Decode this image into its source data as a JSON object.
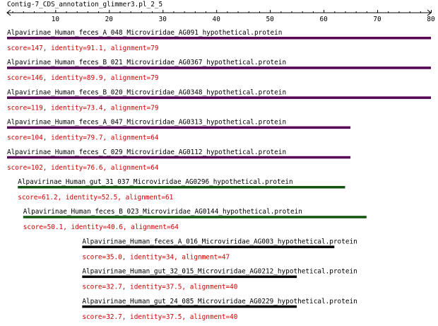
{
  "title": "Contig-7_CDS_annotation_glimmer3.pl_2_5",
  "axis": {
    "min": 1,
    "max": 80,
    "major_ticks": [
      10,
      20,
      30,
      40,
      50,
      60,
      70,
      80
    ]
  },
  "colors": {
    "score_text": "#cc0000",
    "axis": "#000000",
    "label": "#000000"
  },
  "hits": [
    {
      "label": "Alpavirinae_Human_feces_A_048_Microviridae_AG091_hypothetical.protein",
      "stats": "score=147, identity=91.1, alignment=79",
      "start": 1,
      "end": 80,
      "color": "#550055"
    },
    {
      "label": "Alpavirinae_Human_feces_B_021_Microviridae_AG0367_hypothetical.protein",
      "stats": "score=146, identity=89.9, alignment=79",
      "start": 1,
      "end": 80,
      "color": "#550055"
    },
    {
      "label": "Alpavirinae_Human_feces_B_020_Microviridae_AG0348_hypothetical.protein",
      "stats": "score=119, identity=73.4, alignment=79",
      "start": 1,
      "end": 80,
      "color": "#550055"
    },
    {
      "label": "Alpavirinae_Human_feces_A_047_Microviridae_AG0313_hypothetical.protein",
      "stats": "score=104, identity=79.7, alignment=64",
      "start": 1,
      "end": 65,
      "color": "#550055"
    },
    {
      "label": "Alpavirinae_Human_feces_C_029_Microviridae_AG0112_hypothetical.protein",
      "stats": "score=102, identity=76.6, alignment=64",
      "start": 1,
      "end": 65,
      "color": "#550055"
    },
    {
      "label": "Alpavirinae_Human_gut_31_037_Microviridae_AG0296_hypothetical.protein",
      "stats": "score=61.2, identity=52.5, alignment=61",
      "start": 3,
      "end": 64,
      "color": "#115511"
    },
    {
      "label": "Alpavirinae_Human_feces_B_023_Microviridae_AG0144_hypothetical.protein",
      "stats": "score=50.1, identity=40.6, alignment=64",
      "start": 4,
      "end": 68,
      "color": "#115511"
    },
    {
      "label": "Alpavirinae_Human_feces_A_016_Microviridae_AG003_hypothetical.protein",
      "stats": "score=35.0, identity=34, alignment=47",
      "start": 15,
      "end": 62,
      "color": "#000000"
    },
    {
      "label": "Alpavirinae_Human_gut_32_015_Microviridae_AG0212_hypothetical.protein",
      "stats": "score=32.7, identity=37.5, alignment=40",
      "start": 15,
      "end": 55,
      "color": "#000000"
    },
    {
      "label": "Alpavirinae_Human_gut_24_085_Microviridae_AG0229_hypothetical.protein",
      "stats": "score=32.7, identity=37.5, alignment=40",
      "start": 15,
      "end": 55,
      "color": "#000000"
    }
  ]
}
